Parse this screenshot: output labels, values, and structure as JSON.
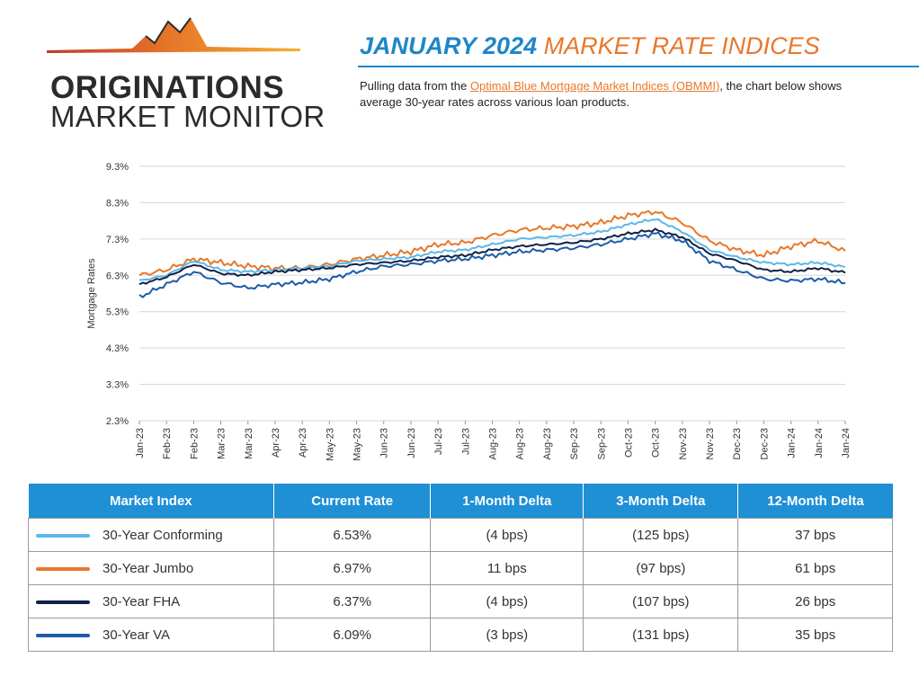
{
  "logo": {
    "line1": "ORIGINATIONS",
    "line2": "MARKET MONITOR"
  },
  "header": {
    "title_part1": "JANUARY 2024",
    "title_part2": "MARKET RATE INDICES",
    "intro_before": "Pulling data from the ",
    "intro_link": "Optimal Blue Mortgage Market Indices (OBMMI)",
    "intro_after": ", the chart below shows average 30-year rates across various loan products."
  },
  "colors": {
    "conforming": "#5bb8e8",
    "jumbo": "#e7782a",
    "fha": "#0f2147",
    "va": "#1d5ba8",
    "header_blue": "#1f86c8",
    "table_header": "#1f8fd6"
  },
  "chart_data": {
    "type": "line",
    "ylabel": "Mortgage Rates",
    "ylim": [
      2.3,
      9.3
    ],
    "y_ticks": [
      "9.3%",
      "8.3%",
      "7.3%",
      "6.3%",
      "5.3%",
      "4.3%",
      "3.3%",
      "2.3%"
    ],
    "y_tick_values": [
      9.3,
      8.3,
      7.3,
      6.3,
      5.3,
      4.3,
      3.3,
      2.3
    ],
    "x_ticks": [
      "Jan-23",
      "Feb-23",
      "Feb-23",
      "Mar-23",
      "Mar-23",
      "Apr-23",
      "Apr-23",
      "May-23",
      "May-23",
      "Jun-23",
      "Jun-23",
      "Jul-23",
      "Jul-23",
      "Aug-23",
      "Aug-23",
      "Aug-23",
      "Sep-23",
      "Sep-23",
      "Oct-23",
      "Oct-23",
      "Nov-23",
      "Nov-23",
      "Dec-23",
      "Dec-23",
      "Jan-24",
      "Jan-24",
      "Jan-24"
    ],
    "x_index": [
      0,
      1,
      2,
      3,
      4,
      5,
      6,
      7,
      8,
      9,
      10,
      11,
      12,
      13,
      14,
      15,
      16,
      17,
      18,
      19,
      20,
      21,
      22,
      23,
      24,
      25,
      26
    ],
    "series": [
      {
        "name": "30-Year Jumbo",
        "color_key": "jumbo",
        "values": [
          6.3,
          6.45,
          6.75,
          6.65,
          6.55,
          6.5,
          6.5,
          6.6,
          6.75,
          6.85,
          6.95,
          7.15,
          7.2,
          7.4,
          7.55,
          7.6,
          7.65,
          7.75,
          7.95,
          8.05,
          7.75,
          7.25,
          7.0,
          6.85,
          7.1,
          7.25,
          6.97
        ]
      },
      {
        "name": "30-Year Conforming",
        "color_key": "conforming",
        "values": [
          6.15,
          6.3,
          6.7,
          6.45,
          6.4,
          6.45,
          6.5,
          6.55,
          6.7,
          6.75,
          6.8,
          6.95,
          7.0,
          7.15,
          7.3,
          7.35,
          7.4,
          7.5,
          7.7,
          7.85,
          7.5,
          7.0,
          6.8,
          6.65,
          6.6,
          6.65,
          6.53
        ]
      },
      {
        "name": "30-Year FHA",
        "color_key": "fha",
        "values": [
          6.05,
          6.25,
          6.6,
          6.35,
          6.3,
          6.4,
          6.45,
          6.5,
          6.6,
          6.65,
          6.7,
          6.8,
          6.85,
          7.0,
          7.1,
          7.15,
          7.2,
          7.3,
          7.45,
          7.55,
          7.35,
          6.9,
          6.7,
          6.45,
          6.4,
          6.5,
          6.37
        ]
      },
      {
        "name": "30-Year VA",
        "color_key": "va",
        "values": [
          5.7,
          6.05,
          6.4,
          6.1,
          5.95,
          6.05,
          6.1,
          6.2,
          6.4,
          6.55,
          6.6,
          6.7,
          6.75,
          6.85,
          6.95,
          7.0,
          7.05,
          7.15,
          7.3,
          7.45,
          7.25,
          6.7,
          6.45,
          6.2,
          6.15,
          6.2,
          6.09
        ]
      }
    ]
  },
  "table": {
    "headers": [
      "Market Index",
      "Current Rate",
      "1-Month Delta",
      "3-Month Delta",
      "12-Month Delta"
    ],
    "rows": [
      {
        "name": "30-Year Conforming",
        "color_key": "conforming",
        "current": "6.53%",
        "m1": "(4 bps)",
        "m3": "(125 bps)",
        "m12": "37 bps"
      },
      {
        "name": "30-Year Jumbo",
        "color_key": "jumbo",
        "current": "6.97%",
        "m1": "11 bps",
        "m3": "(97 bps)",
        "m12": "61 bps"
      },
      {
        "name": "30-Year FHA",
        "color_key": "fha",
        "current": "6.37%",
        "m1": "(4 bps)",
        "m3": "(107 bps)",
        "m12": "26 bps"
      },
      {
        "name": "30-Year VA",
        "color_key": "va",
        "current": "6.09%",
        "m1": "(3 bps)",
        "m3": "(131 bps)",
        "m12": "35 bps"
      }
    ]
  }
}
